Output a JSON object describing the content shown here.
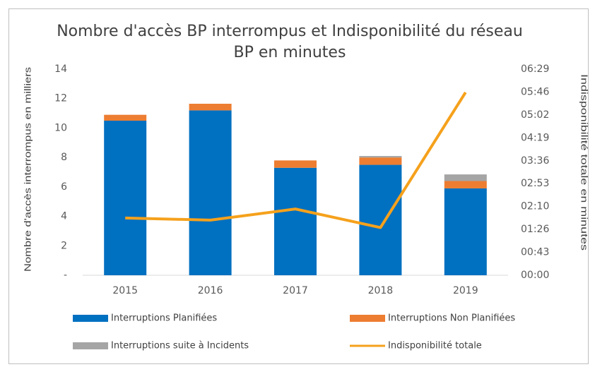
{
  "chart_data": {
    "type": "bar",
    "title": "Nombre d'accès BP interrompus et Indisponibilité du réseau BP en minutes",
    "y_label": "Nombre d'accès interrompus en milliers",
    "y2_label": "Indisponibilité totale en minutes",
    "categories": [
      "2015",
      "2016",
      "2017",
      "2018",
      "2019"
    ],
    "series": [
      {
        "name": "Interruptions Planifiées",
        "type": "bar",
        "color": "#0070c0",
        "values": [
          10.5,
          11.2,
          7.3,
          7.5,
          5.9
        ]
      },
      {
        "name": "Interruptions Non Planifiées",
        "type": "bar",
        "color": "#ed7d31",
        "values": [
          0.4,
          0.45,
          0.5,
          0.5,
          0.5
        ]
      },
      {
        "name": "Interruptions suite à Incidents",
        "type": "bar",
        "color": "#a5a5a5",
        "values": [
          0,
          0,
          0,
          0.1,
          0.45
        ]
      },
      {
        "name": "Indisponibilité totale",
        "type": "line",
        "axis": "y2",
        "color": "#f5a11c",
        "values": [
          108,
          104,
          125,
          90,
          345
        ]
      }
    ],
    "ylim": [
      0,
      14
    ],
    "yticks": [
      {
        "value": 0,
        "label": "-"
      },
      2,
      4,
      6,
      8,
      10,
      12,
      14
    ],
    "y2lim": [
      0,
      388.8
    ],
    "y2ticks": [
      {
        "value": 0,
        "label": "00:00"
      },
      {
        "value": 43.2,
        "label": "00:43"
      },
      {
        "value": 86.4,
        "label": "01:26"
      },
      {
        "value": 129.6,
        "label": "02:10"
      },
      {
        "value": 172.8,
        "label": "02:53"
      },
      {
        "value": 216,
        "label": "03:36"
      },
      {
        "value": 259.2,
        "label": "04:19"
      },
      {
        "value": 302.4,
        "label": "05:02"
      },
      {
        "value": 345.6,
        "label": "05:46"
      },
      {
        "value": 388.8,
        "label": "06:29"
      }
    ],
    "grid": false,
    "legend": "bottom"
  }
}
